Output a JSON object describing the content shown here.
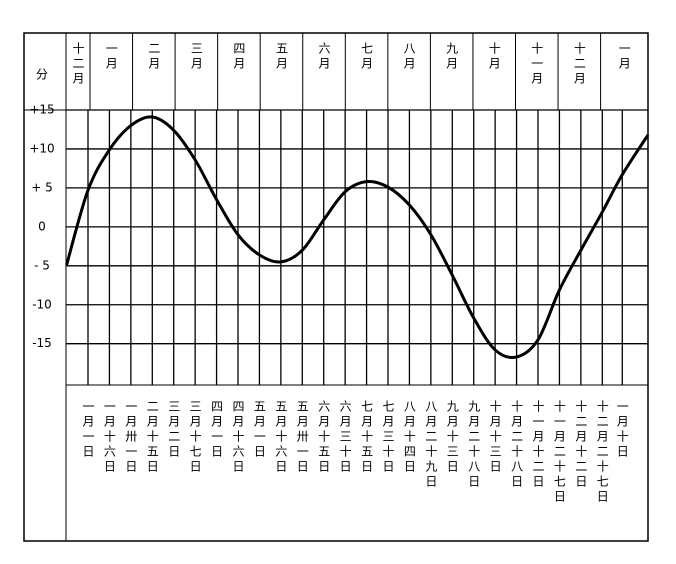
{
  "chart_data": {
    "type": "line",
    "y_axis_label": "分",
    "month_headers": [
      "十二月",
      "一月",
      "二月",
      "三月",
      "四月",
      "五月",
      "六月",
      "七月",
      "八月",
      "九月",
      "十月",
      "十一月",
      "十二月",
      "一月"
    ],
    "xlim": [
      -15.4,
      392
    ],
    "xticks": [
      {
        "value": 0,
        "label": "一月一日"
      },
      {
        "value": 15,
        "label": "一月十六日"
      },
      {
        "value": 30,
        "label": "一月卅一日"
      },
      {
        "value": 45,
        "label": "二月十五日"
      },
      {
        "value": 60,
        "label": "三月二日"
      },
      {
        "value": 75,
        "label": "三月十七日"
      },
      {
        "value": 90,
        "label": "四月一日"
      },
      {
        "value": 105,
        "label": "四月十六日"
      },
      {
        "value": 120,
        "label": "五月一日"
      },
      {
        "value": 135,
        "label": "五月十六日"
      },
      {
        "value": 150,
        "label": "五月卅一日"
      },
      {
        "value": 165,
        "label": "六月十五日"
      },
      {
        "value": 180,
        "label": "六月三十日"
      },
      {
        "value": 195,
        "label": "七月十五日"
      },
      {
        "value": 210,
        "label": "七月三十日"
      },
      {
        "value": 225,
        "label": "八月十四日"
      },
      {
        "value": 240,
        "label": "八月二十九日"
      },
      {
        "value": 255,
        "label": "九月十三日"
      },
      {
        "value": 270,
        "label": "九月二十八日"
      },
      {
        "value": 285,
        "label": "十月十三日"
      },
      {
        "value": 300,
        "label": "十月二十八日"
      },
      {
        "value": 315,
        "label": "十一月十二日"
      },
      {
        "value": 330,
        "label": "十一月二十七日"
      },
      {
        "value": 345,
        "label": "十二月十二日"
      },
      {
        "value": 360,
        "label": "十二月二十七日"
      },
      {
        "value": 374,
        "label": "一月十日"
      }
    ],
    "ylim": [
      -20.3,
      15
    ],
    "yticks": [
      {
        "value": 15,
        "label": "+15"
      },
      {
        "value": 10,
        "label": "+10"
      },
      {
        "value": 5,
        "label": "+ 5"
      },
      {
        "value": 0,
        "label": "0"
      },
      {
        "value": -5,
        "label": "- 5"
      },
      {
        "value": -10,
        "label": "-10"
      },
      {
        "value": -15,
        "label": "-15"
      }
    ],
    "grid": true,
    "series": [
      {
        "color": "#000000",
        "x": [
          -15,
          0,
          15,
          30,
          45,
          60,
          75,
          90,
          105,
          120,
          135,
          150,
          165,
          180,
          195,
          210,
          225,
          240,
          255,
          270,
          285,
          300,
          315,
          330,
          345,
          360,
          374,
          392
        ],
        "values": [
          -4.9,
          4.7,
          9.9,
          13,
          14.1,
          12.4,
          8.6,
          3.5,
          -1,
          -3.6,
          -4.5,
          -3,
          0.9,
          4.5,
          5.8,
          5.1,
          2.8,
          -1,
          -6.2,
          -11.7,
          -15.8,
          -16.7,
          -14.5,
          -8.1,
          -3,
          1.9,
          6.7,
          11.8
        ]
      }
    ]
  }
}
